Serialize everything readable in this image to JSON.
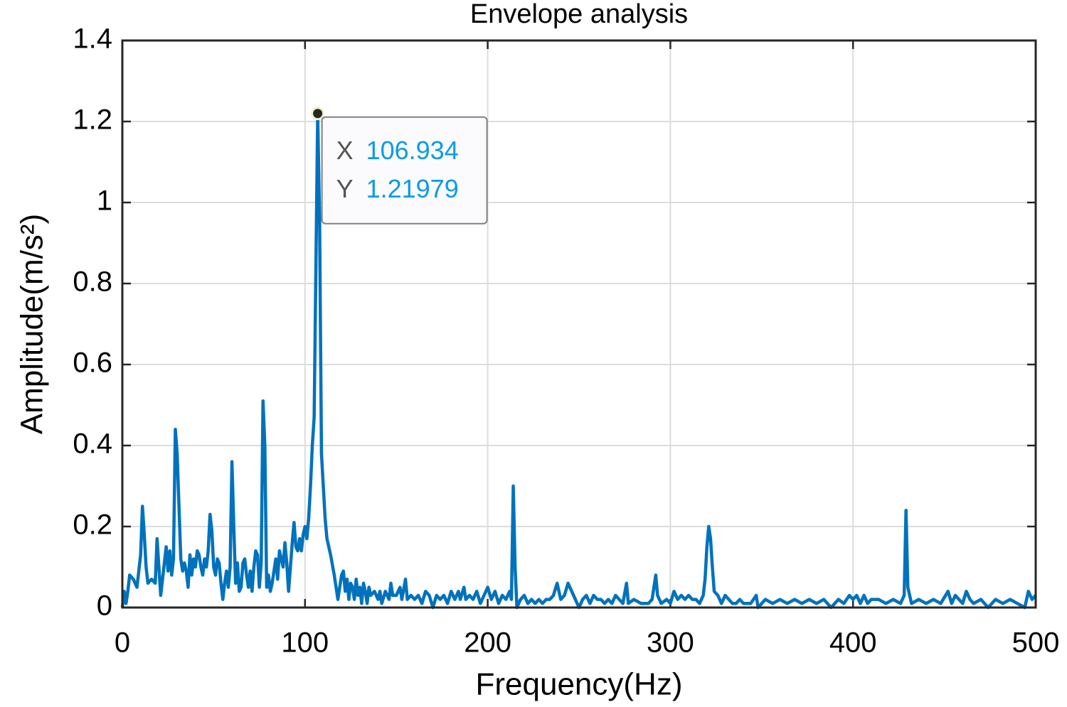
{
  "chart_data": {
    "type": "line",
    "title": "Envelope analysis",
    "x_label": "Frequency(Hz)",
    "y_label": "Amplitude(m/s²)",
    "color": "#0072bd",
    "grid": true,
    "xlim": [
      0,
      500
    ],
    "xticks": [
      0,
      100,
      200,
      300,
      400,
      500
    ],
    "ylim": [
      0,
      1.4
    ],
    "yticks": [
      0,
      0.2,
      0.4,
      0.6,
      0.8,
      1,
      1.2,
      1.4
    ],
    "x": [
      0,
      1,
      2,
      3,
      4,
      6,
      8,
      10,
      11,
      12,
      13,
      14,
      16,
      18,
      19,
      20,
      21,
      22,
      24,
      25,
      26,
      27,
      28,
      29,
      30,
      31,
      32,
      33,
      34,
      35,
      36,
      37,
      38,
      39,
      40,
      41,
      42,
      43,
      44,
      45,
      46,
      47,
      48,
      49,
      50,
      51,
      52,
      53,
      54,
      55,
      56,
      57,
      58,
      59,
      60,
      61,
      62,
      63,
      64,
      65,
      66,
      67,
      68,
      69,
      70,
      71,
      72,
      73,
      74,
      75,
      76,
      77,
      78,
      79,
      80,
      81,
      82,
      83,
      84,
      85,
      86,
      87,
      88,
      89,
      90,
      91,
      92,
      93,
      94,
      95,
      96,
      97,
      98,
      99,
      100,
      101,
      102,
      103,
      104,
      105,
      106.934,
      108,
      109,
      110,
      111,
      112,
      114,
      116,
      118,
      120,
      121,
      122,
      123,
      124,
      125,
      126,
      127,
      128,
      129,
      130,
      131,
      132,
      133,
      134,
      135,
      136,
      138,
      140,
      141,
      142,
      144,
      146,
      147,
      148,
      150,
      152,
      153,
      155,
      156,
      158,
      160,
      162,
      164,
      166,
      168,
      170,
      172,
      174,
      176,
      178,
      180,
      182,
      184,
      185,
      187,
      188,
      190,
      192,
      194,
      196,
      198,
      200,
      202,
      204,
      206,
      208,
      210,
      212,
      213,
      214,
      215,
      216,
      218,
      220,
      222,
      224,
      226,
      228,
      230,
      232,
      234,
      236,
      238,
      240,
      242,
      244,
      246,
      248,
      250,
      252,
      254,
      256,
      258,
      260,
      262,
      264,
      266,
      268,
      270,
      272,
      274,
      276,
      277,
      280,
      284,
      288,
      290,
      292,
      293,
      295,
      298,
      300,
      302,
      304,
      306,
      308,
      310,
      312,
      314,
      316,
      318,
      319,
      320,
      321,
      322,
      323,
      324,
      326,
      328,
      330,
      332,
      334,
      336,
      338,
      340,
      344,
      347,
      348,
      352,
      356,
      360,
      364,
      368,
      372,
      376,
      380,
      384,
      388,
      392,
      395,
      398,
      400,
      402,
      404,
      406,
      408,
      410,
      414,
      418,
      422,
      426,
      428,
      429,
      430,
      432,
      436,
      440,
      444,
      448,
      452,
      454,
      456,
      458,
      460,
      462,
      464,
      466,
      470,
      474,
      478,
      482,
      486,
      490,
      494,
      496,
      498,
      500
    ],
    "values": [
      0,
      0.04,
      0.01,
      0.04,
      0.08,
      0.07,
      0.05,
      0.13,
      0.25,
      0.18,
      0.1,
      0.06,
      0.07,
      0.06,
      0.17,
      0.1,
      0.03,
      0.07,
      0.15,
      0.09,
      0.14,
      0.08,
      0.12,
      0.44,
      0.38,
      0.25,
      0.12,
      0.09,
      0.11,
      0.09,
      0.05,
      0.13,
      0.08,
      0.12,
      0.1,
      0.14,
      0.13,
      0.1,
      0.08,
      0.12,
      0.1,
      0.14,
      0.23,
      0.19,
      0.1,
      0.08,
      0.12,
      0.11,
      0.06,
      0.02,
      0.06,
      0.09,
      0.05,
      0.1,
      0.36,
      0.2,
      0.06,
      0.11,
      0.04,
      0.05,
      0.11,
      0.12,
      0.08,
      0.05,
      0.09,
      0.04,
      0.1,
      0.14,
      0.13,
      0.05,
      0.11,
      0.51,
      0.4,
      0.05,
      0.08,
      0.04,
      0.06,
      0.09,
      0.12,
      0.07,
      0.14,
      0.12,
      0.1,
      0.16,
      0.11,
      0.04,
      0.1,
      0.16,
      0.21,
      0.15,
      0.14,
      0.17,
      0.14,
      0.18,
      0.2,
      0.17,
      0.22,
      0.3,
      0.4,
      0.47,
      1.21979,
      0.95,
      0.38,
      0.3,
      0.22,
      0.17,
      0.13,
      0.08,
      0.02,
      0.08,
      0.09,
      0.04,
      0.07,
      0.02,
      0.06,
      0.05,
      0.02,
      0.07,
      0.03,
      0.05,
      0.01,
      0.06,
      0.04,
      0.01,
      0.05,
      0.03,
      0.04,
      0.02,
      0.04,
      0.01,
      0.04,
      0.02,
      0.06,
      0.03,
      0.03,
      0.05,
      0.02,
      0.07,
      0.02,
      0.03,
      0.02,
      0.03,
      0.01,
      0.04,
      0.03,
      0,
      0.03,
      0.02,
      0.03,
      0.01,
      0.04,
      0.02,
      0.04,
      0.02,
      0.05,
      0.02,
      0.03,
      0.02,
      0.04,
      0.01,
      0.03,
      0.05,
      0.02,
      0.04,
      0.01,
      0.03,
      0.02,
      0.04,
      0.02,
      0.3,
      0.1,
      0,
      0.02,
      0.03,
      0.01,
      0.02,
      0.01,
      0.02,
      0.01,
      0.02,
      0.02,
      0.03,
      0.06,
      0.02,
      0.03,
      0.06,
      0.04,
      0.02,
      0,
      0.02,
      0.03,
      0.01,
      0.03,
      0.02,
      0.02,
      0.01,
      0.02,
      0.01,
      0.03,
      0.02,
      0.01,
      0.06,
      0.01,
      0.02,
      0.01,
      0.01,
      0.02,
      0.08,
      0.03,
      0.01,
      0.02,
      0.01,
      0.04,
      0.02,
      0.03,
      0.02,
      0.03,
      0.02,
      0.02,
      0.01,
      0.03,
      0.07,
      0.15,
      0.2,
      0.17,
      0.1,
      0.04,
      0.03,
      0.01,
      0.03,
      0.02,
      0.01,
      0.01,
      0.02,
      0.01,
      0.01,
      0.03,
      0,
      0.02,
      0.01,
      0.02,
      0.01,
      0.02,
      0.01,
      0.02,
      0.01,
      0.02,
      0,
      0.02,
      0.01,
      0.03,
      0.02,
      0.03,
      0.01,
      0.03,
      0.01,
      0.02,
      0.02,
      0.01,
      0.02,
      0.01,
      0.03,
      0.24,
      0.05,
      0.01,
      0.02,
      0.01,
      0.02,
      0.01,
      0.04,
      0.01,
      0.03,
      0.02,
      0.01,
      0.04,
      0.02,
      0.01,
      0.02,
      0,
      0.02,
      0.01,
      0.02,
      0.01,
      0,
      0.04,
      0.02,
      0.03
    ],
    "datatip": {
      "x_label": "X",
      "x": 106.934,
      "y_label": "Y",
      "y": 1.21979
    }
  }
}
